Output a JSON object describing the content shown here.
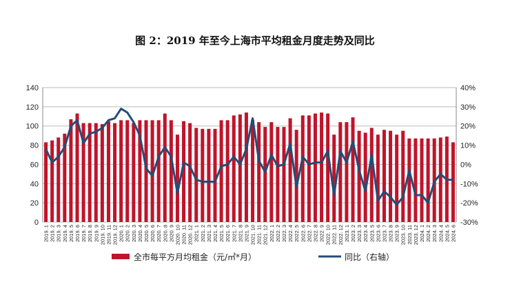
{
  "chart_data": {
    "type": "bar+line",
    "title": "图 2：2019 年至今上海市平均租金月度走势及同比",
    "categories": [
      "2019. 1",
      "2019. 2",
      "2019. 3",
      "2019. 4",
      "2019. 5",
      "2019. 6",
      "2019. 7",
      "2019. 8",
      "2019. 9",
      "2019. 10",
      "2019. 11",
      "2019. 12",
      "2020. 1",
      "2020. 2",
      "2020. 3",
      "2020. 4",
      "2020. 5",
      "2020. 6",
      "2020. 7",
      "2020. 8",
      "2020. 9",
      "2020. 10",
      "2020. 11",
      "2020. 12",
      "2021. 1",
      "2021. 2",
      "2021. 3",
      "2021. 4",
      "2021. 5",
      "2021. 6",
      "2021. 7",
      "2021. 8",
      "2021. 9",
      "2021. 10",
      "2021. 11",
      "2021. 12",
      "2022. 1",
      "2022. 2",
      "2022. 3",
      "2022. 4",
      "2022. 5",
      "2022. 6",
      "2022. 7",
      "2022. 8",
      "2022. 9",
      "2022. 10",
      "2022. 11",
      "2022. 12",
      "2023. 1",
      "2023. 2",
      "2023. 3",
      "2023. 4",
      "2023. 5",
      "2023. 6",
      "2023. 7",
      "2023. 8",
      "2023. 9",
      "2023. 10",
      "2023. 11",
      "2023. 12",
      "2024. 1",
      "2024. 2",
      "2024. 3",
      "2024. 4",
      "2024. 5",
      "2024. 6"
    ],
    "series": [
      {
        "name": "全市每平方月均租金（元/㎡*月）",
        "type": "bar",
        "axis": "left",
        "color": "#C0142A",
        "values": [
          83,
          85,
          88,
          92,
          107,
          113,
          103,
          103,
          103,
          102,
          105,
          103,
          106,
          106,
          103,
          106,
          106,
          106,
          106,
          113,
          106,
          91,
          105,
          103,
          98,
          97,
          97,
          97,
          106,
          106,
          111,
          112,
          114,
          106,
          104,
          99,
          104,
          99,
          99,
          108,
          96,
          111,
          111,
          113,
          114,
          113,
          91,
          104,
          104,
          109,
          95,
          93,
          98,
          91,
          96,
          95,
          91,
          95,
          87,
          87,
          87,
          87,
          87,
          88,
          89,
          83
        ]
      },
      {
        "name": "同比（右轴）",
        "type": "line",
        "axis": "right",
        "color": "#1F4E79",
        "values": [
          8,
          1,
          4,
          9,
          20,
          23,
          11,
          16,
          17,
          19,
          23,
          24,
          29,
          27,
          22,
          15,
          -2,
          -6,
          4,
          9,
          4,
          -15,
          1,
          -1,
          -8,
          -9,
          -9,
          -9,
          -1,
          0,
          4,
          0,
          8,
          24,
          2,
          -4,
          5,
          -1,
          0,
          11,
          -12,
          4,
          0,
          1,
          1,
          7,
          -16,
          7,
          1,
          12,
          -3,
          -14,
          5,
          -19,
          -14,
          -17,
          -21,
          -17,
          -3,
          -16,
          -16,
          -20,
          -9,
          -5,
          -8,
          -8
        ]
      }
    ],
    "left_axis": {
      "min": 0,
      "max": 140,
      "ticks": [
        "0",
        "20",
        "40",
        "60",
        "80",
        "100",
        "120",
        "140"
      ]
    },
    "right_axis": {
      "min": -30,
      "max": 40,
      "ticks": [
        "-30%",
        "-20%",
        "-10%",
        "0%",
        "10%",
        "20%",
        "30%",
        "40%"
      ]
    },
    "grid": true,
    "legend_position": "bottom"
  }
}
